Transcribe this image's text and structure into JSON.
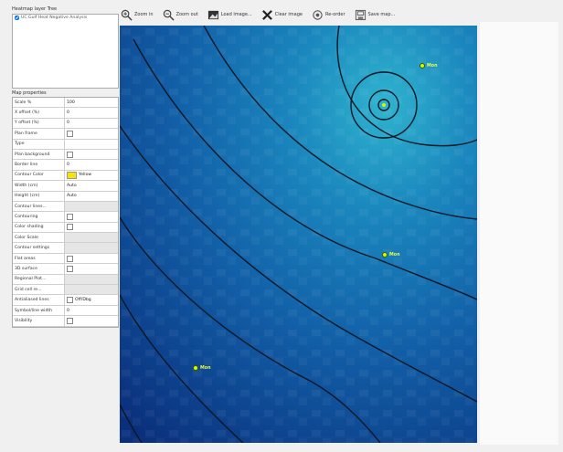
{
  "toolbar": {
    "zoom_in": "Zoom in",
    "zoom_out": "Zoom out",
    "load_image": "Load image...",
    "clear_image": "Clear image",
    "re_order": "Re-order",
    "save_map": "Save map..."
  },
  "layers": {
    "title": "Heatmap layer Tree",
    "items": [
      "UC Gulf Heat Negative Analysis"
    ]
  },
  "props": {
    "title": "Map properties",
    "rows": [
      {
        "key": "Scale %",
        "value": "100"
      },
      {
        "key": "X offset (%)",
        "value": "0"
      },
      {
        "key": "Y offset (%)",
        "value": "0"
      },
      {
        "key": "Plan frame",
        "value": "",
        "type": "check"
      },
      {
        "key": "Type",
        "value": ""
      },
      {
        "key": "Plan background",
        "value": "",
        "type": "check"
      },
      {
        "key": "Border line",
        "value": "0"
      },
      {
        "key": "Contour Color",
        "value": "Yellow",
        "type": "color"
      },
      {
        "key": "Width (cm)",
        "value": "Auto"
      },
      {
        "key": "Height (cm)",
        "value": "Auto"
      },
      {
        "key": "Contour lines...",
        "value": "",
        "type": "gray"
      },
      {
        "key": "Contouring",
        "value": "",
        "type": "check"
      },
      {
        "key": "Color shading",
        "value": "",
        "type": "check"
      },
      {
        "key": "Color Scale",
        "value": "",
        "type": "gray"
      },
      {
        "key": "Contour settings",
        "value": "",
        "type": "gray"
      },
      {
        "key": "Flat areas",
        "value": "",
        "type": "check"
      },
      {
        "key": "3D surface",
        "value": "",
        "type": "check"
      },
      {
        "key": "Regional Plot...",
        "value": "",
        "type": "gray"
      },
      {
        "key": "Grid cell re...",
        "value": "",
        "type": "gray"
      },
      {
        "key": "Antialiased lines",
        "value": "Off/Dbg",
        "type": "check"
      },
      {
        "key": "Symbol/line width",
        "value": "0"
      },
      {
        "key": "Visibility",
        "value": "",
        "type": "check"
      }
    ]
  },
  "colors": {
    "map_dark": "#0b3c8a",
    "map_light": "#2aa3c9",
    "contour": "#101820",
    "marker": "#c8ff00"
  },
  "markers": [
    {
      "label": "Mon"
    },
    {
      "label": "Mon"
    },
    {
      "label": "Mon"
    }
  ]
}
